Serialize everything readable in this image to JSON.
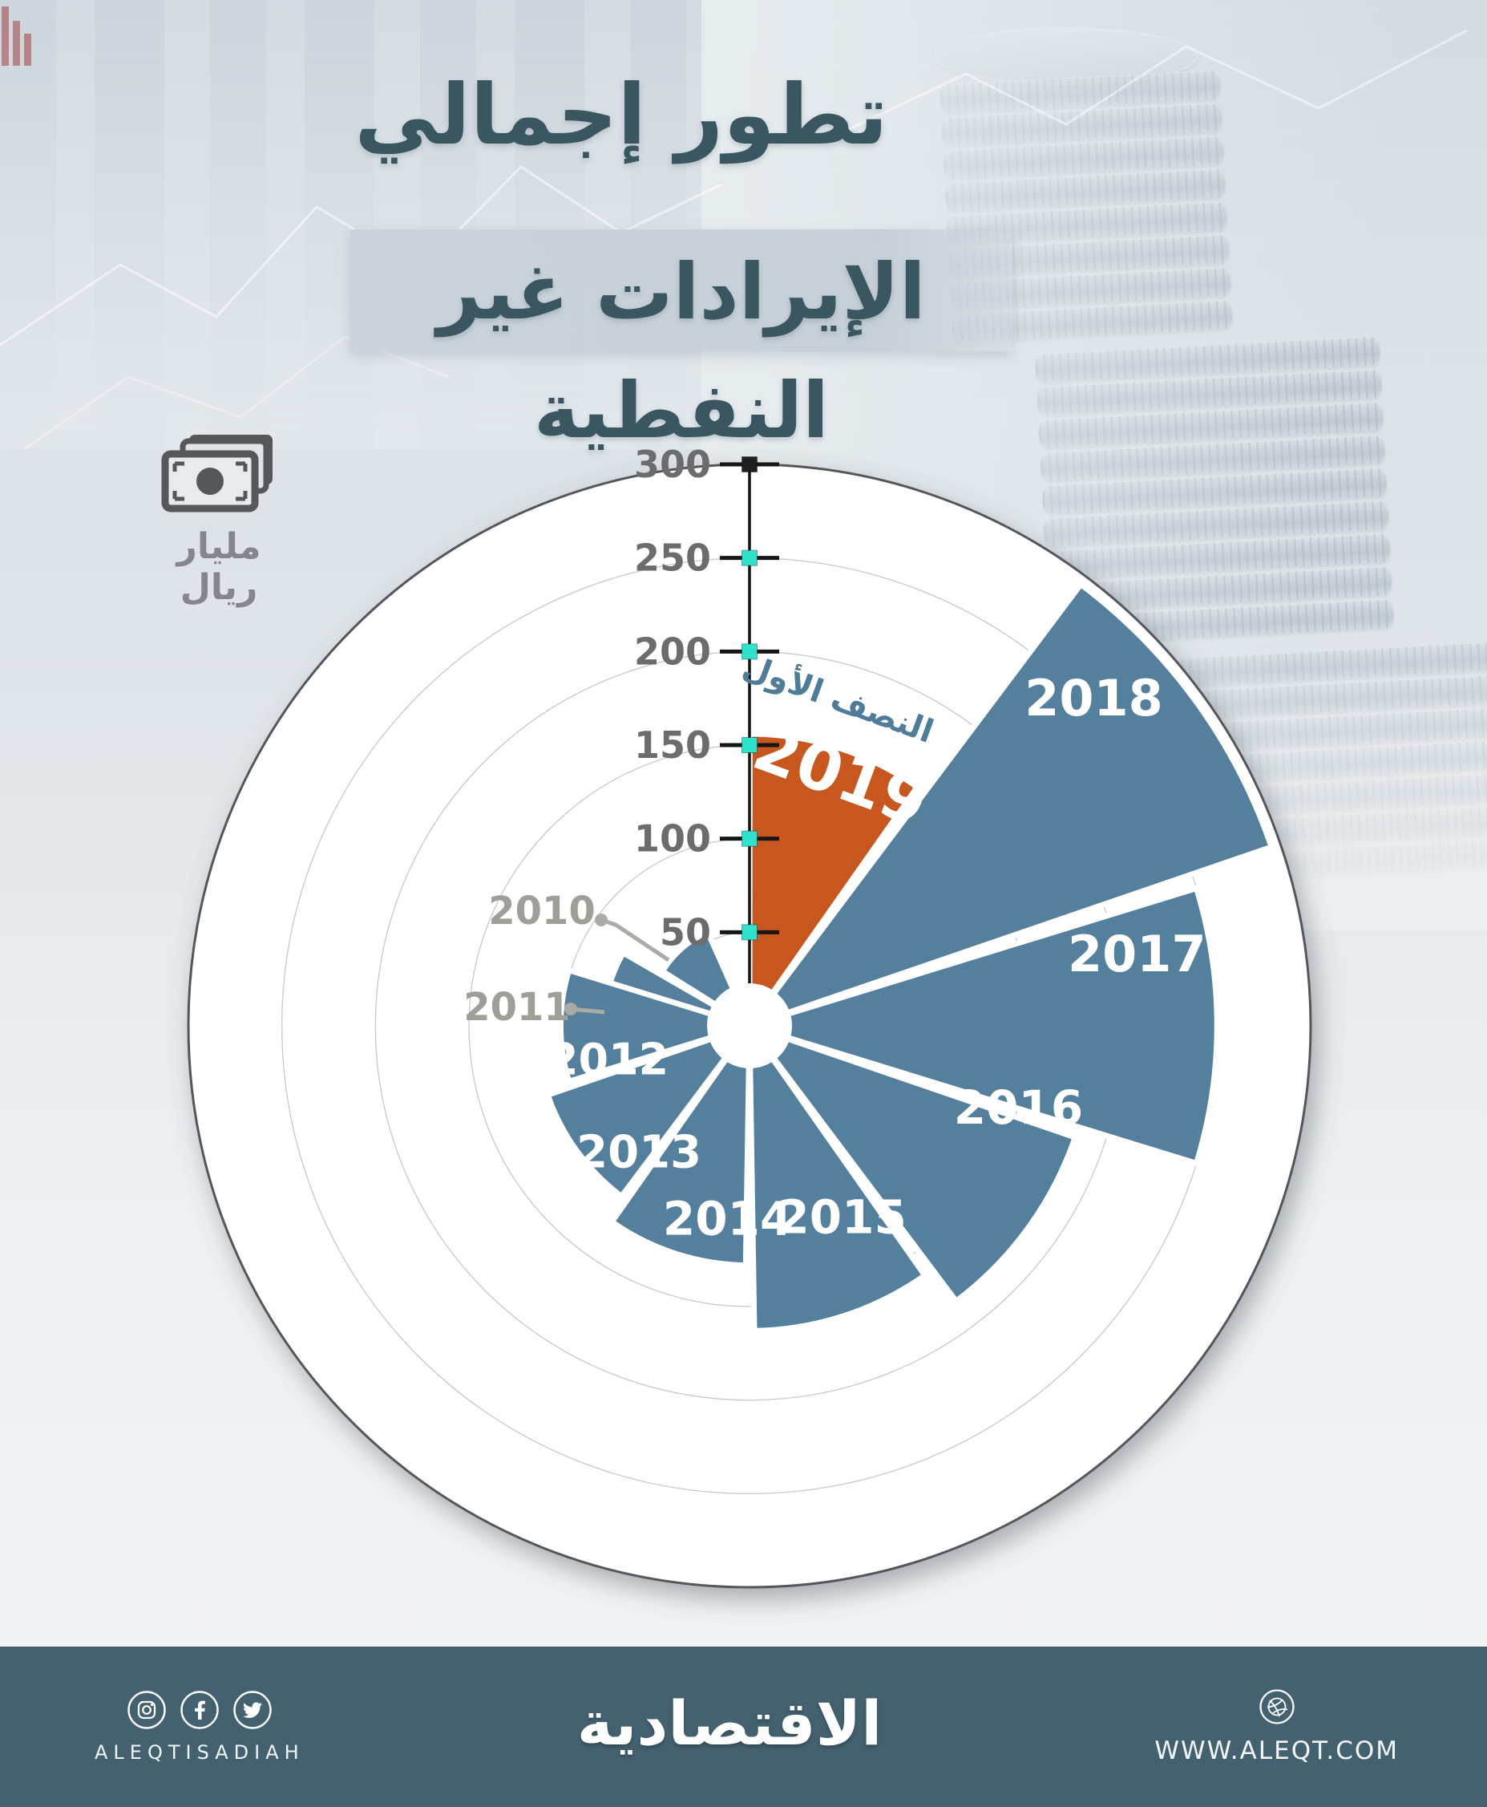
{
  "header": {
    "title_line1": "تطور إجمالي",
    "title_line2": "الإيرادات غير النفطية"
  },
  "unit_badge": {
    "icon": "banknotes-icon",
    "label": "مليار ريال"
  },
  "chart_data": {
    "type": "polar_area",
    "title": "تطور إجمالي الإيرادات غير النفطية",
    "unit": "مليار ريال",
    "axis": {
      "min": 0,
      "max": 300,
      "tick_step": 50,
      "ticks": [
        50,
        100,
        150,
        200,
        250,
        300
      ]
    },
    "layout": {
      "start_angle_deg": 0,
      "direction": "clockwise",
      "order": "latest-year-first-clockwise",
      "grid": "circular"
    },
    "categories": [
      "2010",
      "2011",
      "2012",
      "2013",
      "2014",
      "2015",
      "2016",
      "2017",
      "2018",
      "2019"
    ],
    "values": [
      55,
      78,
      101,
      114,
      128,
      163,
      184,
      250,
      295,
      156
    ],
    "series": [
      {
        "year": "2010",
        "value": 55,
        "label_outside": true
      },
      {
        "year": "2011",
        "value": 78,
        "label_outside": true
      },
      {
        "year": "2012",
        "value": 101
      },
      {
        "year": "2013",
        "value": 114
      },
      {
        "year": "2014",
        "value": 128
      },
      {
        "year": "2015",
        "value": 163
      },
      {
        "year": "2016",
        "value": 184
      },
      {
        "year": "2017",
        "value": 250
      },
      {
        "year": "2018",
        "value": 295
      },
      {
        "year": "2019",
        "value": 156,
        "highlight": true,
        "note": "النصف الأول"
      }
    ],
    "colors": {
      "wedge": "#54809d",
      "highlight": "#c7571f",
      "tick_marker": "#2fe2cb",
      "tick_marker_top": "#1f201e",
      "tick_label": "#6b6c6f",
      "outer_ring": "#55575a",
      "gridline": "#c6c8ca",
      "outside_year_label": "#9da096",
      "note_text": "#4f7c98"
    }
  },
  "footer": {
    "icons": [
      "instagram-icon",
      "facebook-icon",
      "twitter-icon",
      "dribbble-icon"
    ],
    "handle": "ALEQTISADIAH",
    "logo_text": "الاقتصادية",
    "website": "WWW.ALEQT.COM"
  }
}
